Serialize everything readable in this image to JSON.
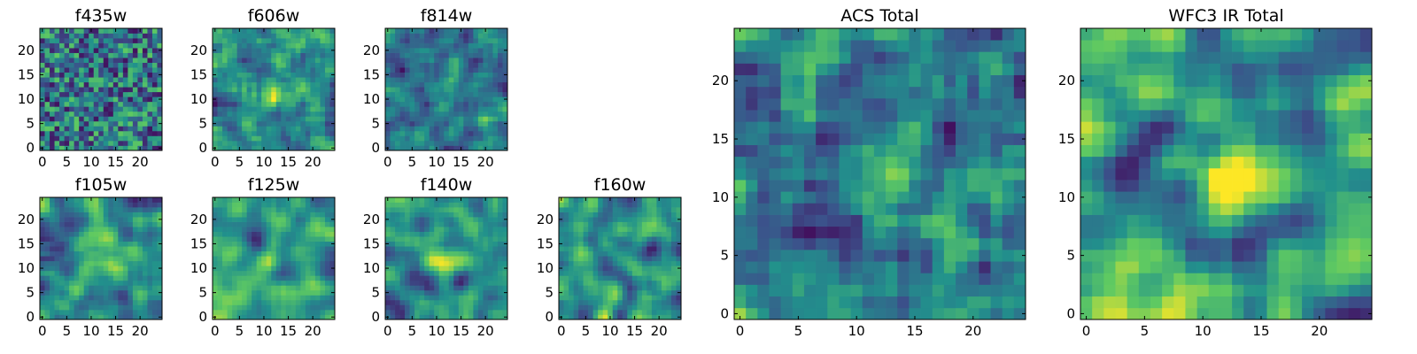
{
  "figure": {
    "colormap": "viridis",
    "colormap_stops": [
      "#440154",
      "#3b528b",
      "#21918c",
      "#5ec962",
      "#fde725"
    ],
    "frame_color": "#000000"
  },
  "chart_data": [
    {
      "type": "heatmap",
      "id": "f435w",
      "title": "f435w",
      "grid_size": 25,
      "xlim": [
        0,
        24
      ],
      "ylim": [
        0,
        24
      ],
      "xticks": [
        0,
        5,
        10,
        15,
        20
      ],
      "yticks": [
        0,
        5,
        10,
        15,
        20
      ],
      "source_centered": false,
      "noise_level": 0.5,
      "smoothing": 0.1,
      "vrange": [
        0.05,
        0.75
      ]
    },
    {
      "type": "heatmap",
      "id": "f606w",
      "title": "f606w",
      "grid_size": 25,
      "xlim": [
        0,
        24
      ],
      "ylim": [
        0,
        24
      ],
      "xticks": [
        0,
        5,
        10,
        15,
        20
      ],
      "yticks": [
        0,
        5,
        10,
        15,
        20
      ],
      "source_centered": true,
      "noise_level": 0.45,
      "smoothing": 0.15,
      "vrange": [
        0.05,
        0.8
      ]
    },
    {
      "type": "heatmap",
      "id": "f814w",
      "title": "f814w",
      "grid_size": 25,
      "xlim": [
        0,
        24
      ],
      "ylim": [
        0,
        24
      ],
      "xticks": [
        0,
        5,
        10,
        15,
        20
      ],
      "yticks": [
        0,
        5,
        10,
        15,
        20
      ],
      "source_centered": true,
      "noise_level": 0.45,
      "smoothing": 0.15,
      "vrange": [
        0.05,
        0.8
      ]
    },
    {
      "type": "heatmap",
      "id": "f105w",
      "title": "f105w",
      "grid_size": 25,
      "xlim": [
        0,
        24
      ],
      "ylim": [
        0,
        24
      ],
      "xticks": [
        0,
        5,
        10,
        15,
        20
      ],
      "yticks": [
        0,
        5,
        10,
        15,
        20
      ],
      "source_centered": true,
      "noise_level": 0.35,
      "smoothing": 0.45,
      "vrange": [
        0.1,
        0.85
      ]
    },
    {
      "type": "heatmap",
      "id": "f125w",
      "title": "f125w",
      "grid_size": 25,
      "xlim": [
        0,
        24
      ],
      "ylim": [
        0,
        24
      ],
      "xticks": [
        0,
        5,
        10,
        15,
        20
      ],
      "yticks": [
        0,
        5,
        10,
        15,
        20
      ],
      "source_centered": true,
      "noise_level": 0.35,
      "smoothing": 0.45,
      "vrange": [
        0.1,
        0.85
      ]
    },
    {
      "type": "heatmap",
      "id": "f140w",
      "title": "f140w",
      "grid_size": 25,
      "xlim": [
        0,
        24
      ],
      "ylim": [
        0,
        24
      ],
      "xticks": [
        0,
        5,
        10,
        15,
        20
      ],
      "yticks": [
        0,
        5,
        10,
        15,
        20
      ],
      "source_centered": true,
      "noise_level": 0.35,
      "smoothing": 0.45,
      "vrange": [
        0.1,
        0.85
      ]
    },
    {
      "type": "heatmap",
      "id": "f160w",
      "title": "f160w",
      "grid_size": 25,
      "xlim": [
        0,
        24
      ],
      "ylim": [
        0,
        24
      ],
      "xticks": [
        0,
        5,
        10,
        15,
        20
      ],
      "yticks": [
        0,
        5,
        10,
        15,
        20
      ],
      "source_centered": true,
      "noise_level": 0.3,
      "smoothing": 0.55,
      "vrange": [
        0.1,
        0.95
      ]
    },
    {
      "type": "heatmap",
      "id": "acs-total",
      "title": "ACS Total",
      "grid_size": 25,
      "xlim": [
        0,
        24
      ],
      "ylim": [
        0,
        24
      ],
      "xticks": [
        0,
        5,
        10,
        15,
        20
      ],
      "yticks": [
        0,
        5,
        10,
        15,
        20
      ],
      "source_centered": true,
      "noise_level": 0.4,
      "smoothing": 0.2,
      "vrange": [
        0.05,
        0.85
      ]
    },
    {
      "type": "heatmap",
      "id": "wfc3-total",
      "title": "WFC3 IR Total",
      "grid_size": 25,
      "xlim": [
        0,
        24
      ],
      "ylim": [
        0,
        24
      ],
      "xticks": [
        0,
        5,
        10,
        15,
        20
      ],
      "yticks": [
        0,
        5,
        10,
        15,
        20
      ],
      "source_centered": true,
      "noise_level": 0.3,
      "smoothing": 0.6,
      "vrange": [
        0.1,
        0.95
      ]
    }
  ]
}
